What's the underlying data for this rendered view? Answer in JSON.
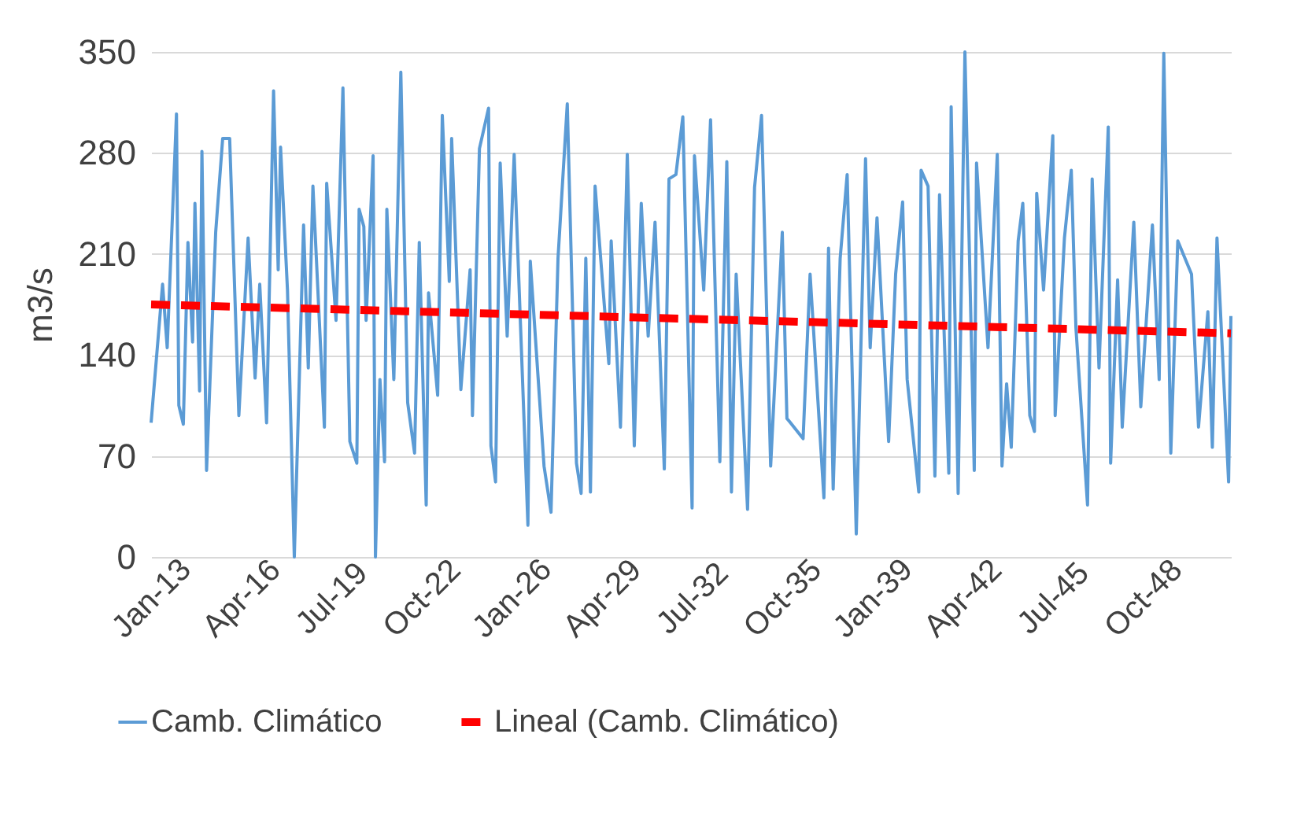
{
  "chart_data": {
    "type": "line",
    "ylabel": "m3/s",
    "ylim": [
      0,
      350
    ],
    "yticks": [
      0,
      70,
      140,
      210,
      280,
      350
    ],
    "xlim": [
      "2013-01",
      "2051-12"
    ],
    "xticks": [
      {
        "value": "2013-01",
        "label": "Jan-13"
      },
      {
        "value": "2016-04",
        "label": "Apr-16"
      },
      {
        "value": "2019-07",
        "label": "Jul-19"
      },
      {
        "value": "2022-10",
        "label": "Oct-22"
      },
      {
        "value": "2026-01",
        "label": "Jan-26"
      },
      {
        "value": "2029-04",
        "label": "Apr-29"
      },
      {
        "value": "2032-07",
        "label": "Jul-32"
      },
      {
        "value": "2035-10",
        "label": "Oct-35"
      },
      {
        "value": "2039-01",
        "label": "Jan-39"
      },
      {
        "value": "2042-04",
        "label": "Apr-42"
      },
      {
        "value": "2045-07",
        "label": "Jul-45"
      },
      {
        "value": "2048-10",
        "label": "Oct-48"
      }
    ],
    "grid": "y",
    "legend": "bottom",
    "marker": "none",
    "x": [
      "2013-01",
      "2013-06",
      "2013-08",
      "2013-12",
      "2014-01",
      "2014-03",
      "2014-05",
      "2014-07",
      "2014-08",
      "2014-10",
      "2014-11",
      "2015-01",
      "2015-05",
      "2015-08",
      "2015-11",
      "2016-03",
      "2016-07",
      "2016-10",
      "2016-12",
      "2017-03",
      "2017-06",
      "2017-08",
      "2017-09",
      "2017-12",
      "2018-03",
      "2018-07",
      "2018-09",
      "2018-11",
      "2019-04",
      "2019-05",
      "2019-09",
      "2019-12",
      "2020-03",
      "2020-06",
      "2020-07",
      "2020-09",
      "2020-10",
      "2021-01",
      "2021-02",
      "2021-04",
      "2021-06",
      "2021-07",
      "2021-10",
      "2022-01",
      "2022-04",
      "2022-07",
      "2022-09",
      "2022-12",
      "2023-01",
      "2023-05",
      "2023-07",
      "2023-10",
      "2023-11",
      "2024-03",
      "2024-07",
      "2024-08",
      "2024-11",
      "2025-03",
      "2025-04",
      "2025-06",
      "2025-08",
      "2025-11",
      "2026-02",
      "2026-08",
      "2026-09",
      "2027-03",
      "2027-06",
      "2027-09",
      "2028-01",
      "2028-05",
      "2028-07",
      "2028-09",
      "2028-11",
      "2029-01",
      "2029-07",
      "2029-08",
      "2029-12",
      "2030-03",
      "2030-06",
      "2030-09",
      "2030-12",
      "2031-03",
      "2031-07",
      "2031-09",
      "2031-12",
      "2032-03",
      "2032-07",
      "2032-08",
      "2032-12",
      "2033-03",
      "2033-07",
      "2033-10",
      "2033-12",
      "2034-02",
      "2034-07",
      "2034-10",
      "2035-01",
      "2035-05",
      "2035-10",
      "2035-12",
      "2036-01",
      "2036-07",
      "2036-10",
      "2037-04",
      "2037-06",
      "2037-08",
      "2037-11",
      "2038-02",
      "2038-06",
      "2038-10",
      "2038-12",
      "2039-03",
      "2039-08",
      "2039-11",
      "2040-02",
      "2040-04",
      "2040-09",
      "2040-10",
      "2041-01",
      "2041-04",
      "2041-06",
      "2041-10",
      "2041-11",
      "2042-02",
      "2042-05",
      "2042-09",
      "2042-10",
      "2043-03",
      "2043-07",
      "2043-09",
      "2043-11",
      "2044-01",
      "2044-04",
      "2044-06",
      "2044-09",
      "2044-11",
      "2044-12",
      "2045-03",
      "2045-07",
      "2045-08",
      "2045-12",
      "2046-03",
      "2046-05",
      "2046-10",
      "2046-12",
      "2047-03",
      "2047-07",
      "2047-08",
      "2047-11",
      "2048-01",
      "2048-06",
      "2048-09",
      "2049-02",
      "2049-05",
      "2049-07",
      "2049-10",
      "2050-01",
      "2050-07",
      "2050-10",
      "2051-02",
      "2051-04",
      "2051-06",
      "2051-11",
      "2051-12"
    ],
    "series": [
      {
        "name": "Camb. Climático",
        "type": "line",
        "color": "#5b9bd5",
        "line_style": "solid",
        "values": [
          93,
          189,
          145,
          307,
          105,
          92,
          218,
          149,
          245,
          115,
          281,
          60,
          225,
          290,
          290,
          98,
          221,
          124,
          189,
          93,
          323,
          199,
          284,
          185,
          0,
          230,
          131,
          257,
          90,
          259,
          164,
          325,
          80,
          65,
          241,
          229,
          164,
          278,
          0,
          123,
          66,
          241,
          123,
          336,
          107,
          72,
          218,
          36,
          183,
          112,
          306,
          191,
          290,
          116,
          199,
          98,
          283,
          311,
          77,
          52,
          273,
          153,
          279,
          22,
          205,
          63,
          31,
          207,
          314,
          65,
          44,
          207,
          45,
          257,
          134,
          219,
          90,
          279,
          77,
          245,
          153,
          232,
          61,
          262,
          265,
          305,
          34,
          278,
          185,
          303,
          66,
          274,
          45,
          196,
          33,
          256,
          306,
          63,
          225,
          96,
          94,
          82,
          196,
          41,
          214,
          47,
          207,
          265,
          16,
          276,
          145,
          235,
          80,
          196,
          246,
          123,
          45,
          268,
          257,
          56,
          251,
          58,
          312,
          44,
          350,
          60,
          273,
          145,
          279,
          63,
          120,
          76,
          219,
          245,
          98,
          87,
          252,
          185,
          292,
          98,
          221,
          268,
          159,
          36,
          262,
          131,
          298,
          65,
          192,
          90,
          232,
          104,
          230,
          123,
          349,
          72,
          219,
          196,
          90,
          170,
          76,
          221,
          52,
          167
        ]
      },
      {
        "name": "Lineal (Camb. Climático)",
        "type": "line",
        "color": "#ff0000",
        "line_style": "dashed",
        "x": [
          "2013-01",
          "2051-12"
        ],
        "values": [
          175,
          155
        ]
      }
    ]
  }
}
